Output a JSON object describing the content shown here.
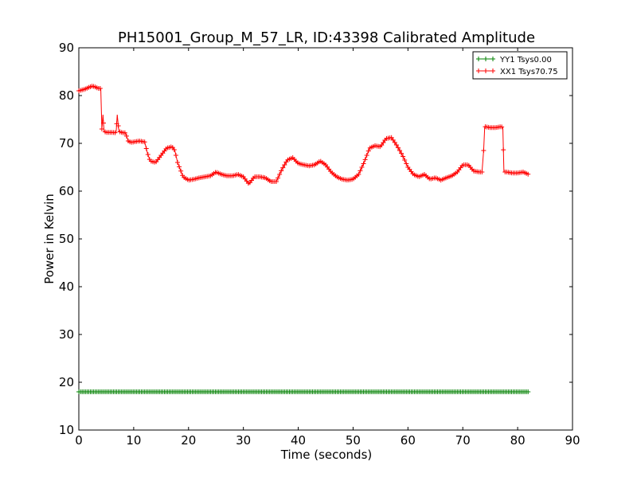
{
  "chart_data": {
    "type": "line",
    "title": "PH15001_Group_M_57_LR, ID:43398 Calibrated Amplitude",
    "xlabel": "Time (seconds)",
    "ylabel": "Power in Kelvin",
    "xlim": [
      0,
      90
    ],
    "ylim": [
      10,
      90
    ],
    "xticks": [
      0,
      10,
      20,
      30,
      40,
      50,
      60,
      70,
      80,
      90
    ],
    "yticks": [
      10,
      20,
      30,
      40,
      50,
      60,
      70,
      80,
      90
    ],
    "grid": false,
    "legend_position": "top-right",
    "marker": "+",
    "series": [
      {
        "name": "YY1 Tsys0.00",
        "color": "#008000",
        "x": [
          0,
          82
        ],
        "y": [
          18,
          18
        ]
      },
      {
        "name": "XX1 Tsys70.75",
        "color": "#ff0000",
        "x": [
          0,
          1,
          2,
          2.5,
          3,
          3.5,
          4,
          4.2,
          4.4,
          4.6,
          5,
          6,
          6.8,
          7,
          7.3,
          8,
          8.5,
          9,
          9.5,
          10,
          11,
          12,
          12.5,
          13,
          14,
          15,
          16,
          17,
          17.5,
          18,
          19,
          20,
          21,
          22,
          23,
          24,
          25,
          26,
          27,
          28,
          29,
          30,
          31,
          32,
          33,
          34,
          35,
          36,
          37,
          38,
          39,
          40,
          41,
          42,
          43,
          44,
          45,
          46,
          47,
          48,
          49,
          50,
          51,
          52,
          53,
          54,
          55,
          56,
          57,
          58,
          59,
          60,
          61,
          62,
          63,
          64,
          65,
          66,
          67,
          68,
          69,
          70,
          71,
          72,
          73,
          73.5,
          73.8,
          74,
          75,
          76,
          77,
          77.3,
          77.5,
          78,
          79,
          80,
          81,
          82
        ],
        "y": [
          81,
          81.3,
          81.8,
          82,
          81.8,
          81.5,
          81.5,
          73,
          76,
          72.5,
          72.3,
          72.3,
          72.2,
          76,
          72.5,
          72.2,
          72.2,
          70.5,
          70.2,
          70.3,
          70.5,
          70.3,
          68,
          66.3,
          66,
          67.5,
          69,
          69.3,
          68.5,
          66,
          63,
          62.3,
          62.5,
          62.8,
          63,
          63.2,
          64,
          63.5,
          63.2,
          63.2,
          63.5,
          63,
          61.5,
          63,
          63,
          62.8,
          62,
          62,
          64.5,
          66.5,
          67,
          65.8,
          65.5,
          65.3,
          65.5,
          66.3,
          65.5,
          64,
          63,
          62.5,
          62.3,
          62.5,
          63.5,
          66,
          69,
          69.5,
          69.3,
          71,
          71.2,
          69.5,
          67.5,
          65,
          63.5,
          63,
          63.5,
          62.5,
          62.8,
          62.3,
          62.8,
          63.2,
          64,
          65.5,
          65.5,
          64.2,
          64,
          64,
          68.5,
          73.5,
          73.3,
          73.3,
          73.5,
          73.3,
          64,
          64,
          63.8,
          63.8,
          64,
          63.5
        ]
      }
    ]
  }
}
